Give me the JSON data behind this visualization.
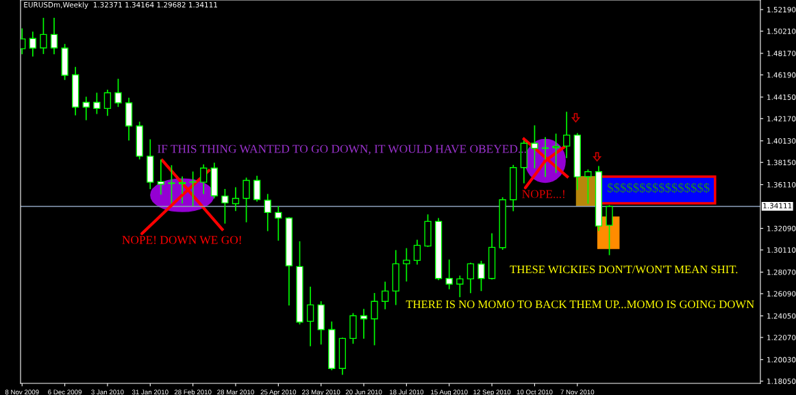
{
  "chart_data": {
    "type": "candlestick",
    "title": "EURUSDm,Weekly  1.32371 1.34164 1.29682 1.34111",
    "color": "#00ff00",
    "x": [
      "2009-11-08",
      "2009-11-15",
      "2009-11-22",
      "2009-11-29",
      "2009-12-06",
      "2009-12-13",
      "2009-12-20",
      "2009-12-27",
      "2010-01-03",
      "2010-01-10",
      "2010-01-17",
      "2010-01-24",
      "2010-01-31",
      "2010-02-07",
      "2010-02-14",
      "2010-02-21",
      "2010-02-28",
      "2010-03-07",
      "2010-03-14",
      "2010-03-21",
      "2010-03-28",
      "2010-04-04",
      "2010-04-11",
      "2010-04-18",
      "2010-04-25",
      "2010-05-02",
      "2010-05-09",
      "2010-05-16",
      "2010-05-23",
      "2010-05-30",
      "2010-06-06",
      "2010-06-13",
      "2010-06-20",
      "2010-06-27",
      "2010-07-04",
      "2010-07-11",
      "2010-07-18",
      "2010-07-25",
      "2010-08-01",
      "2010-08-08",
      "2010-08-15",
      "2010-08-22",
      "2010-08-29",
      "2010-09-05",
      "2010-09-12",
      "2010-09-19",
      "2010-09-26",
      "2010-10-03",
      "2010-10-10",
      "2010-10-17",
      "2010-10-24",
      "2010-10-31",
      "2010-11-07",
      "2010-11-14",
      "2010-11-21",
      "2010-11-28"
    ],
    "ohlc": [
      [
        1.486,
        1.5041,
        1.4814,
        1.4949
      ],
      [
        1.4953,
        1.5011,
        1.4793,
        1.4865
      ],
      [
        1.4867,
        1.5138,
        1.4816,
        1.499
      ],
      [
        1.499,
        1.5138,
        1.4814,
        1.4867
      ],
      [
        1.4865,
        1.4898,
        1.4578,
        1.4615
      ],
      [
        1.462,
        1.4687,
        1.4252,
        1.4323
      ],
      [
        1.4367,
        1.4413,
        1.4208,
        1.4323
      ],
      [
        1.4367,
        1.445,
        1.4265,
        1.4311
      ],
      [
        1.4311,
        1.4478,
        1.4247,
        1.4455
      ],
      [
        1.4455,
        1.4578,
        1.433,
        1.4362
      ],
      [
        1.4362,
        1.4404,
        1.4022,
        1.415
      ],
      [
        1.415,
        1.4184,
        1.3848,
        1.3872
      ],
      [
        1.3872,
        1.4022,
        1.3575,
        1.3633
      ],
      [
        1.3638,
        1.3837,
        1.3524,
        1.3615
      ],
      [
        1.3622,
        1.3784,
        1.3436,
        1.3626
      ],
      [
        1.362,
        1.368,
        1.3443,
        1.363
      ],
      [
        1.3634,
        1.3726,
        1.342,
        1.3636
      ],
      [
        1.3633,
        1.3791,
        1.3529,
        1.3763
      ],
      [
        1.3763,
        1.3807,
        1.349,
        1.3508
      ],
      [
        1.3506,
        1.3566,
        1.3258,
        1.3443
      ],
      [
        1.3436,
        1.3582,
        1.3374,
        1.3485
      ],
      [
        1.3485,
        1.367,
        1.327,
        1.365
      ],
      [
        1.365,
        1.3687,
        1.346,
        1.3474
      ],
      [
        1.3467,
        1.352,
        1.3189,
        1.3355
      ],
      [
        1.3355,
        1.3409,
        1.3101,
        1.3304
      ],
      [
        1.3304,
        1.3306,
        1.2506,
        1.2865
      ],
      [
        1.2858,
        1.3085,
        1.2332,
        1.2348
      ],
      [
        1.2355,
        1.2668,
        1.2131,
        1.2506
      ],
      [
        1.2506,
        1.2534,
        1.2147,
        1.2279
      ],
      [
        1.2279,
        1.2348,
        1.1911,
        1.1922
      ],
      [
        1.1922,
        1.22,
        1.1869,
        1.2198
      ],
      [
        1.2198,
        1.2425,
        1.2154,
        1.2406
      ],
      [
        1.2406,
        1.2464,
        1.22,
        1.2378
      ],
      [
        1.2378,
        1.261,
        1.214,
        1.2538
      ],
      [
        1.2538,
        1.2714,
        1.2471,
        1.2633
      ],
      [
        1.2633,
        1.3004,
        1.251,
        1.2883
      ],
      [
        1.2883,
        1.3022,
        1.2726,
        1.2916
      ],
      [
        1.2915,
        1.3099,
        1.2881,
        1.3053
      ],
      [
        1.3047,
        1.3332,
        1.3043,
        1.3273
      ],
      [
        1.3273,
        1.3299,
        1.2739,
        1.2749
      ],
      [
        1.2749,
        1.2917,
        1.2655,
        1.2697
      ],
      [
        1.2697,
        1.277,
        1.2582,
        1.2745
      ],
      [
        1.2745,
        1.2889,
        1.2619,
        1.2883
      ],
      [
        1.2881,
        1.2906,
        1.2638,
        1.2749
      ],
      [
        1.2749,
        1.3158,
        1.2745,
        1.3034
      ],
      [
        1.3032,
        1.3489,
        1.3017,
        1.3472
      ],
      [
        1.3472,
        1.3787,
        1.3372,
        1.3768
      ],
      [
        1.3768,
        1.4011,
        1.3629,
        1.3991
      ],
      [
        1.3991,
        1.415,
        1.3766,
        1.3944
      ],
      [
        1.3944,
        1.4043,
        1.3686,
        1.3948
      ],
      [
        1.395,
        1.4074,
        1.3724,
        1.3963
      ],
      [
        1.3965,
        1.4275,
        1.386,
        1.4066
      ],
      [
        1.4066,
        1.4079,
        1.3567,
        1.3682
      ],
      [
        1.3684,
        1.3745,
        1.3441,
        1.373
      ],
      [
        1.373,
        1.3777,
        1.3189,
        1.3231
      ],
      [
        1.32371,
        1.34164,
        1.29682,
        1.34111
      ]
    ],
    "xlim": [
      "2009-11-07",
      "2011-03-07"
    ],
    "xticks": [
      {
        "value": "2009-11-08",
        "label": "8 Nov 2009"
      },
      {
        "value": "2009-12-06",
        "label": "6 Dec 2009"
      },
      {
        "value": "2010-01-03",
        "label": "3 Jan 2010"
      },
      {
        "value": "2010-01-31",
        "label": "31 Jan 2010"
      },
      {
        "value": "2010-02-28",
        "label": "28 Feb 2010"
      },
      {
        "value": "2010-03-28",
        "label": "28 Mar 2010"
      },
      {
        "value": "2010-04-25",
        "label": "25 Apr 2010"
      },
      {
        "value": "2010-05-23",
        "label": "23 May 2010"
      },
      {
        "value": "2010-06-20",
        "label": "20 Jun 2010"
      },
      {
        "value": "2010-07-18",
        "label": "18 Jul 2010"
      },
      {
        "value": "2010-08-15",
        "label": "15 Aug 2010"
      },
      {
        "value": "2010-09-12",
        "label": "12 Sep 2010"
      },
      {
        "value": "2010-10-10",
        "label": "10 Oct 2010"
      },
      {
        "value": "2010-11-07",
        "label": "7 Nov 2010"
      }
    ],
    "ylim": [
      1.1785,
      1.5307
    ],
    "yticks": [
      {
        "value": 1.5219,
        "label": "1.52190"
      },
      {
        "value": 1.5021,
        "label": "1.50210"
      },
      {
        "value": 1.4817,
        "label": "1.48170"
      },
      {
        "value": 1.4619,
        "label": "1.46190"
      },
      {
        "value": 1.4415,
        "label": "1.44150"
      },
      {
        "value": 1.4217,
        "label": "1.42170"
      },
      {
        "value": 1.4013,
        "label": "1.40130"
      },
      {
        "value": 1.3815,
        "label": "1.38150"
      },
      {
        "value": 1.3611,
        "label": "1.36110"
      },
      {
        "value": 1.3209,
        "label": "1.32090"
      },
      {
        "value": 1.3011,
        "label": "1.30110"
      },
      {
        "value": 1.2807,
        "label": "1.28070"
      },
      {
        "value": 1.2609,
        "label": "1.26090"
      },
      {
        "value": 1.2405,
        "label": "1.24050"
      },
      {
        "value": 1.2207,
        "label": "1.22070"
      },
      {
        "value": 1.2003,
        "label": "1.20030"
      },
      {
        "value": 1.1805,
        "label": "1.18050"
      }
    ],
    "ref_lines": [
      {
        "axis": "y",
        "value": 1.34111,
        "label": "1.34111",
        "color": "#8fa3bf"
      }
    ],
    "annotations": [
      "IF THIS THING WANTED TO GO DOWN, IT WOULD HAVE OBEYED...",
      {
        "text": "NOPE! DOWN WE GO!",
        "x": "2010-02-21",
        "y": 1.3514
      },
      {
        "text": "NOPE...!",
        "x": "2010-10-17",
        "y": 1.3829
      },
      "$$$$$$$$$$$$$$$$",
      "THESE WICKIES DON'T/WON'T MEAN SHIT.",
      "THERE IS NO MOMO TO BACK THEM UP...MOMO IS GOING DOWN"
    ],
    "grid": false,
    "legend": false
  }
}
